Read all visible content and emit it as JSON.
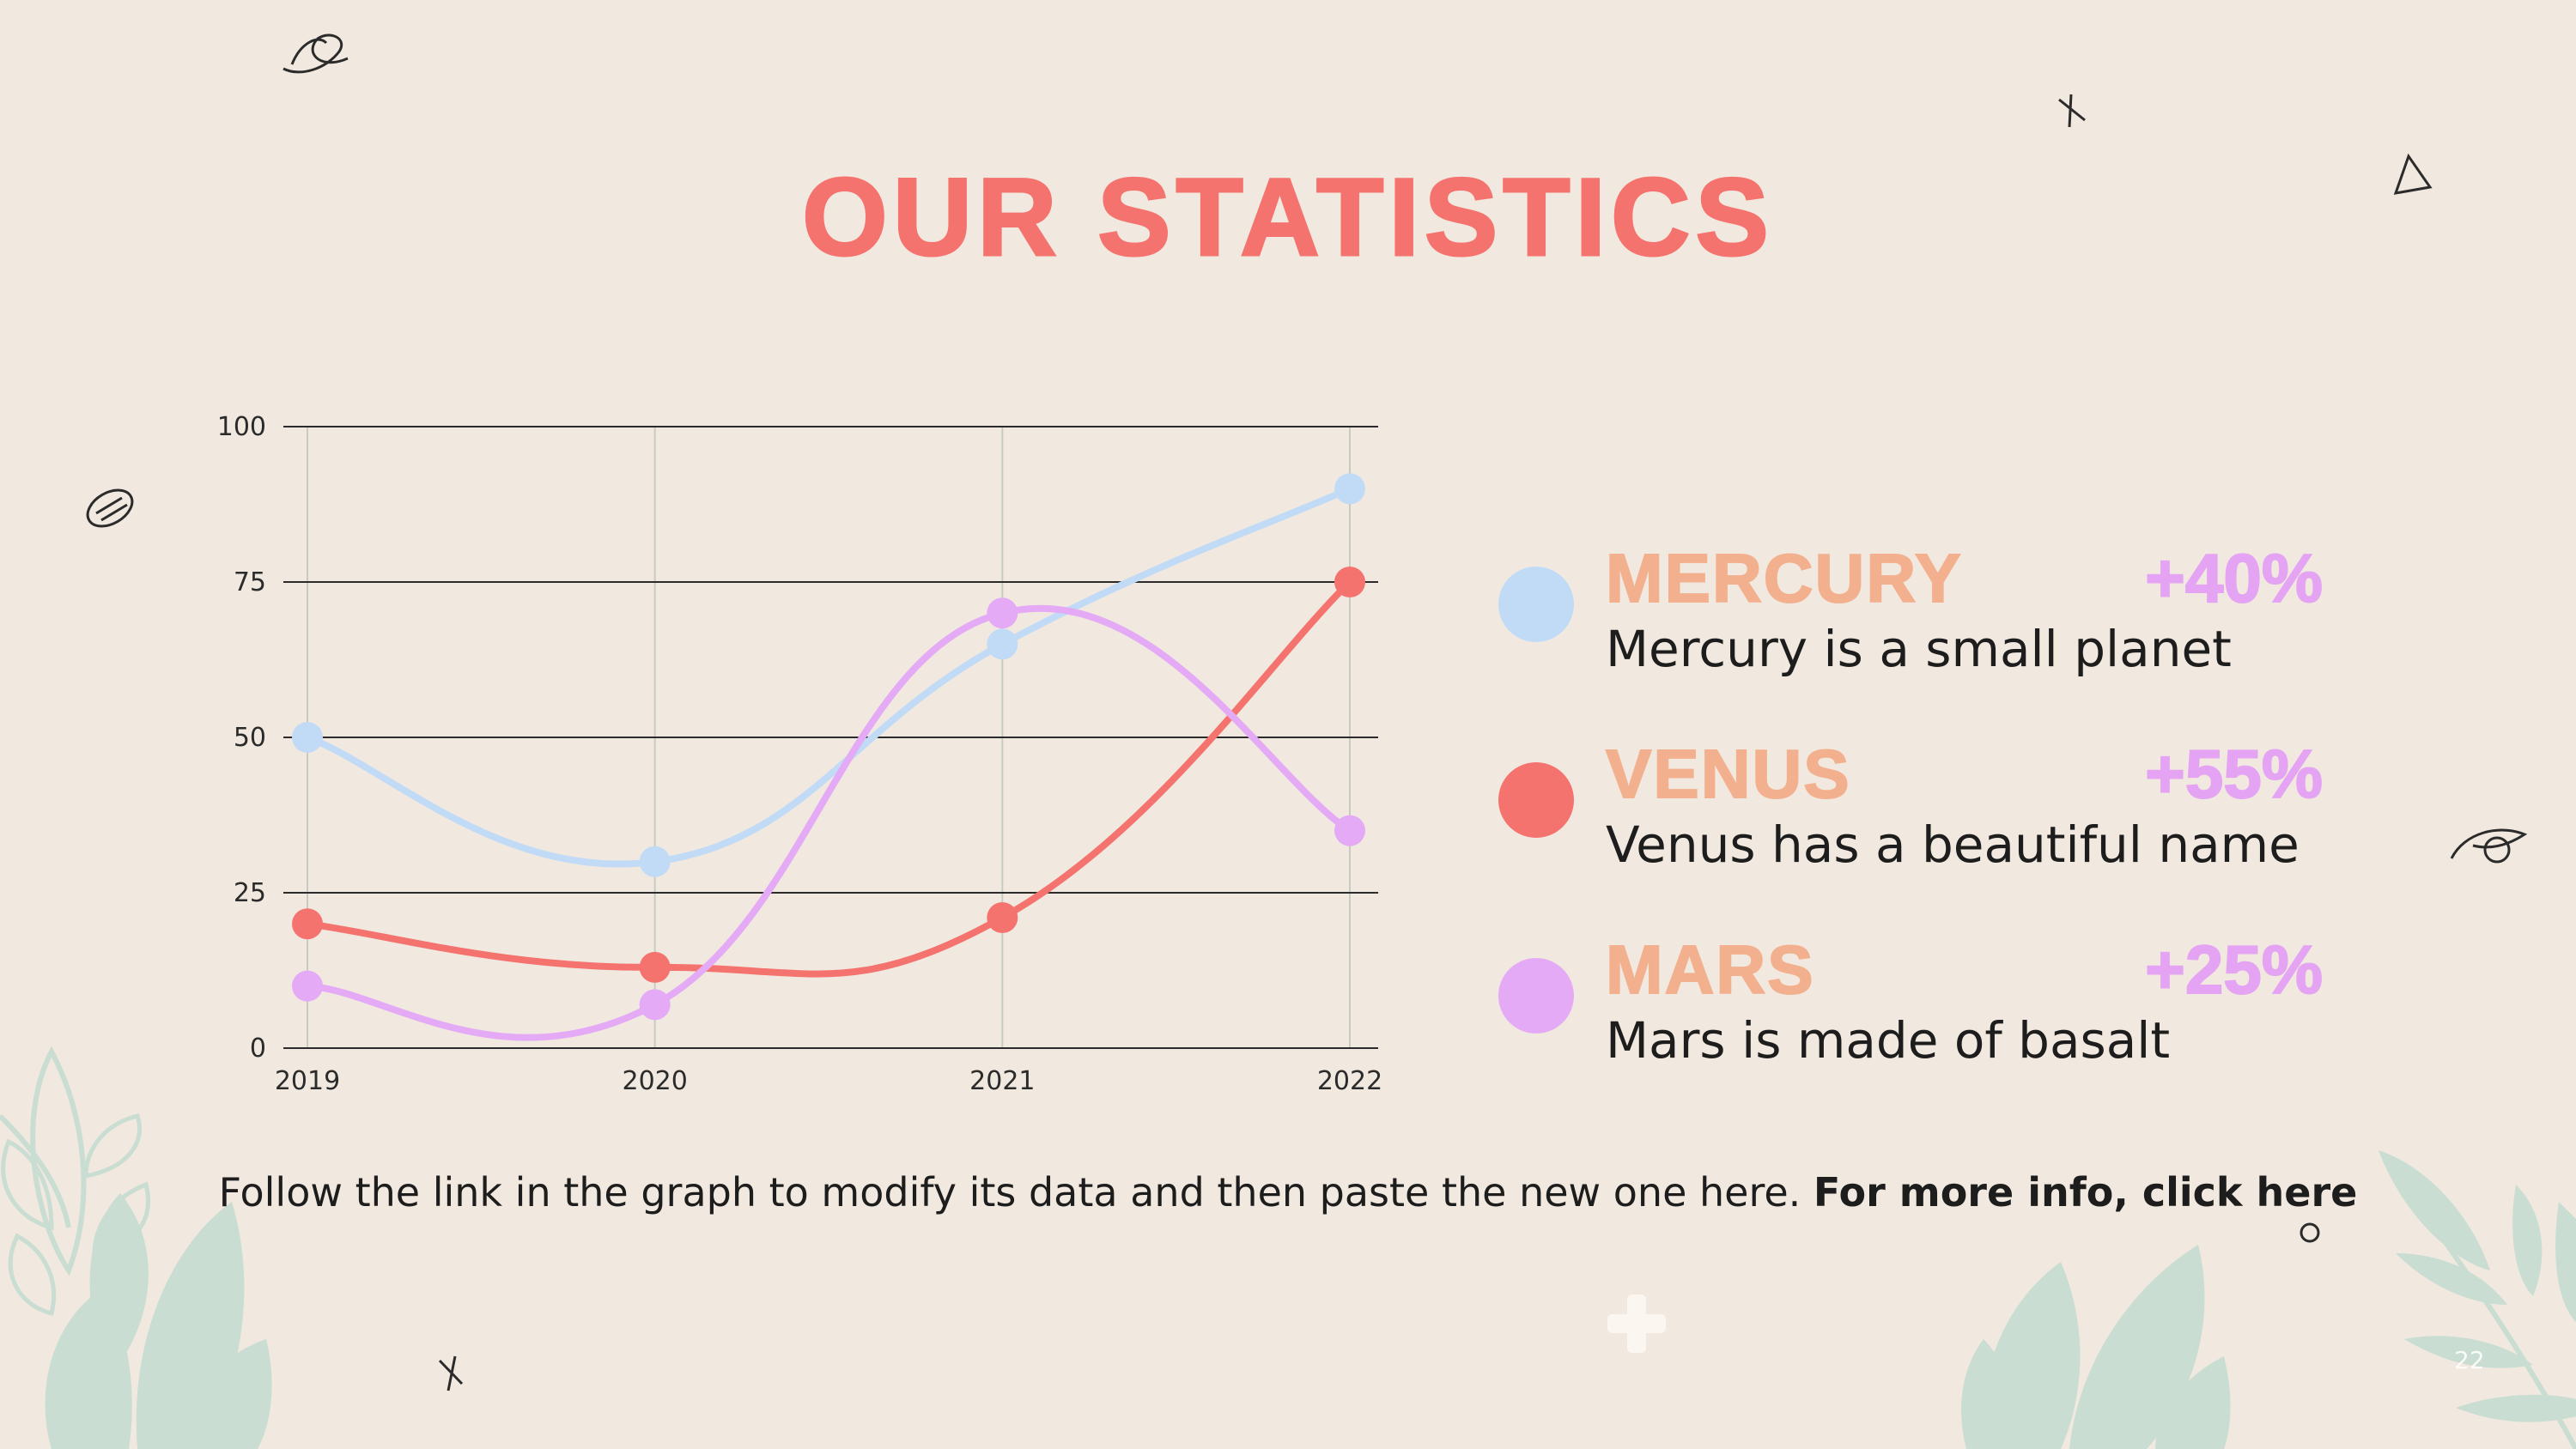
{
  "title": "OUR STATISTICS",
  "chart_data": {
    "type": "line",
    "x": [
      "2019",
      "2020",
      "2021",
      "2022"
    ],
    "yticks": [
      "0",
      "25",
      "50",
      "75",
      "100"
    ],
    "ylim": [
      0,
      100
    ],
    "grid": true,
    "series": [
      {
        "name": "Mercury",
        "color": "#c1dbf6",
        "values": [
          50,
          30,
          65,
          90
        ]
      },
      {
        "name": "Venus",
        "color": "#f5736e",
        "values": [
          20,
          13,
          21,
          75
        ]
      },
      {
        "name": "Mars",
        "color": "#e4aaf6",
        "values": [
          10,
          7,
          70,
          35
        ]
      }
    ]
  },
  "legend": [
    {
      "name": "MERCURY",
      "percent": "+40%",
      "description": "Mercury is a small planet",
      "color": "#c1dbf6"
    },
    {
      "name": "VENUS",
      "percent": "+55%",
      "description": "Venus has a beautiful name",
      "color": "#f5736e"
    },
    {
      "name": "MARS",
      "percent": "+25%",
      "description": "Mars is made of basalt",
      "color": "#e4aaf6"
    }
  ],
  "footer": {
    "text": "Follow the link in the graph to modify its data and then paste the new one here.",
    "link": "For more info, click here"
  },
  "slide_number": "22"
}
